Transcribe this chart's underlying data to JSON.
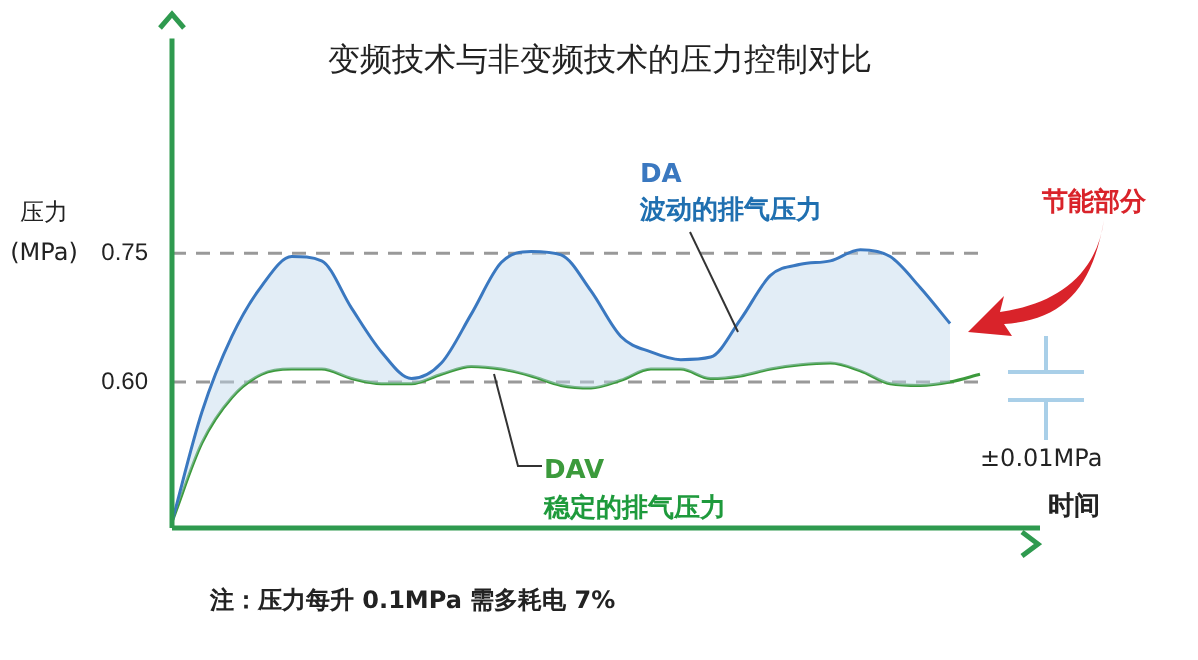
{
  "chart_data": {
    "type": "line",
    "title": "变频技术与非变频技术的压力控制对比",
    "ylabel": "压力\n(MPa)",
    "xlabel": "时间",
    "categories": [
      null,
      null,
      null,
      null,
      null,
      null,
      null,
      null,
      null,
      null,
      null,
      null,
      null,
      null,
      null,
      null,
      null,
      null,
      null,
      null,
      null,
      null,
      null,
      null,
      null,
      null,
      null,
      null
    ],
    "series": [
      {
        "name": "DA",
        "color": "#3a78c0",
        "values": [
          0.437,
          0.565,
          0.653,
          0.712,
          0.746,
          0.741,
          0.686,
          0.635,
          0.604,
          0.622,
          0.679,
          0.739,
          0.752,
          0.748,
          0.706,
          0.653,
          0.635,
          0.626,
          0.629,
          0.673,
          0.724,
          0.737,
          0.741,
          0.754,
          0.746,
          0.71,
          0.668,
          null
        ]
      },
      {
        "name": "DAV",
        "color": "#3c9a3c",
        "values": [
          0.437,
          0.529,
          0.582,
          0.609,
          0.615,
          0.615,
          0.604,
          0.598,
          0.598,
          0.609,
          0.618,
          0.615,
          0.607,
          0.596,
          0.593,
          0.602,
          0.615,
          0.615,
          0.604,
          0.607,
          0.615,
          0.62,
          0.622,
          0.613,
          0.598,
          0.596,
          0.6,
          0.609
        ]
      }
    ],
    "ylim": [
      0.43,
      1.0
    ],
    "yticks": [
      {
        "value": 0.6,
        "label": "0.60"
      },
      0.75
    ],
    "grid": false,
    "legend": false,
    "marker": "none",
    "line_style": "solid",
    "ref_lines": [
      {
        "axis": "y",
        "value": 0.75,
        "color": "#999999",
        "line_style": "dashed"
      },
      {
        "axis": "y",
        "value": 0.6,
        "color": "#999999",
        "line_style": "dashed"
      }
    ],
    "annotations": [
      "波动的排气压力",
      "稳定的排气压力",
      "节能部分",
      "±0.01MPa",
      "注：压力每升 0.1MPa 需多耗电 7%"
    ]
  }
}
